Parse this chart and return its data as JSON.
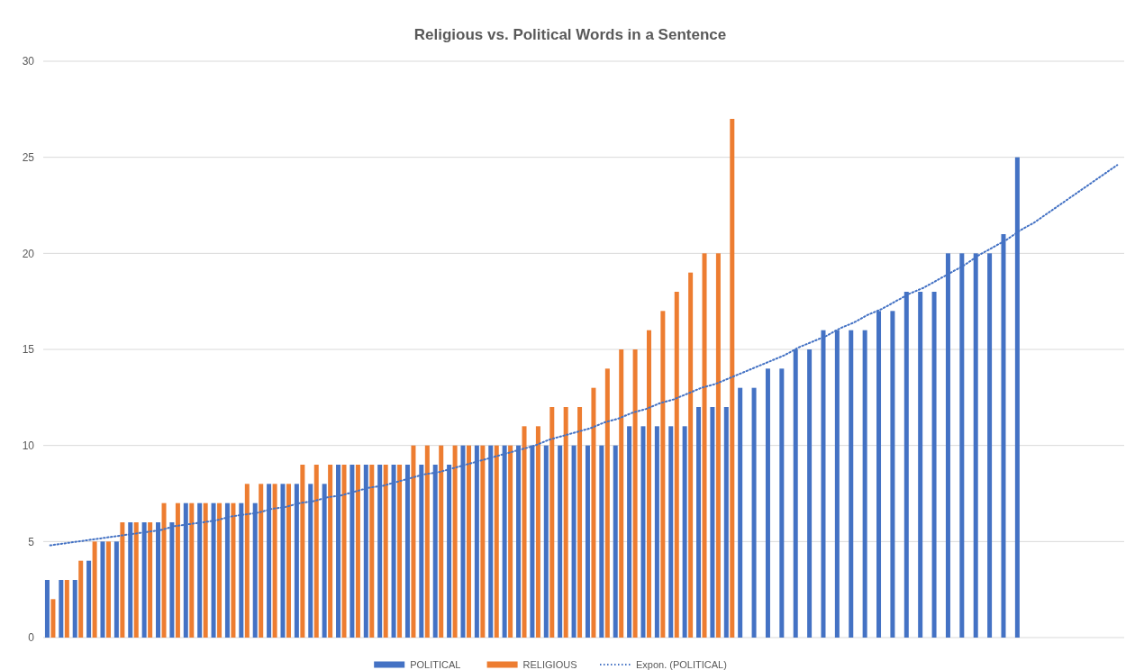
{
  "chart_data": {
    "type": "bar",
    "title": "Religious vs. Political Words in a Sentence",
    "categories": [
      null,
      null,
      null,
      null,
      null,
      null,
      null,
      null,
      null,
      null,
      null,
      null,
      null,
      null,
      null,
      null,
      null,
      null,
      null,
      null,
      null,
      null,
      null,
      null,
      null,
      null,
      null,
      null,
      null,
      null,
      null,
      null,
      null,
      null,
      null,
      null,
      null,
      null,
      null,
      null,
      null,
      null,
      null,
      null,
      null,
      null,
      null,
      null,
      null,
      null,
      null,
      null,
      null,
      null,
      null,
      null,
      null,
      null,
      null,
      null,
      null,
      null,
      null,
      null,
      null,
      null,
      null,
      null,
      null,
      null,
      null,
      null,
      null,
      null,
      null,
      null,
      null,
      null
    ],
    "series": [
      {
        "name": "POLITICAL",
        "color": "#4472c4",
        "values": [
          3,
          3,
          3,
          4,
          5,
          5,
          6,
          6,
          6,
          6,
          7,
          7,
          7,
          7,
          7,
          7,
          8,
          8,
          8,
          8,
          8,
          9,
          9,
          9,
          9,
          9,
          9,
          9,
          9,
          9,
          10,
          10,
          10,
          10,
          10,
          10,
          10,
          10,
          10,
          10,
          10,
          10,
          11,
          11,
          11,
          11,
          11,
          12,
          12,
          12,
          13,
          13,
          14,
          14,
          15,
          15,
          16,
          16,
          16,
          16,
          17,
          17,
          18,
          18,
          18,
          20,
          20,
          20,
          20,
          21,
          25,
          null,
          null,
          null,
          null,
          null,
          null,
          null
        ]
      },
      {
        "name": "RELIGIOUS",
        "color": "#ed7d31",
        "values": [
          2,
          3,
          4,
          5,
          5,
          6,
          6,
          6,
          7,
          7,
          7,
          7,
          7,
          7,
          8,
          8,
          8,
          8,
          9,
          9,
          9,
          9,
          9,
          9,
          9,
          9,
          10,
          10,
          10,
          10,
          10,
          10,
          10,
          10,
          11,
          11,
          12,
          12,
          12,
          13,
          14,
          15,
          15,
          16,
          17,
          18,
          19,
          20,
          20,
          27,
          null,
          null,
          null,
          null,
          null,
          null,
          null,
          null,
          null,
          null,
          null,
          null,
          null,
          null,
          null,
          null,
          null,
          null,
          null,
          null,
          null,
          null,
          null,
          null,
          null,
          null,
          null,
          null
        ]
      },
      {
        "name": "Expon. (POLITICAL)",
        "type": "line",
        "line_style": "dotted",
        "color": "#4472c4",
        "values": [
          4.8,
          4.9,
          5.0,
          5.1,
          5.2,
          5.3,
          5.4,
          5.5,
          5.6,
          5.8,
          5.9,
          6.0,
          6.1,
          6.3,
          6.4,
          6.5,
          6.7,
          6.8,
          7.0,
          7.1,
          7.3,
          7.4,
          7.6,
          7.8,
          7.9,
          8.1,
          8.3,
          8.5,
          8.6,
          8.8,
          9.0,
          9.2,
          9.4,
          9.6,
          9.8,
          10.0,
          10.3,
          10.5,
          10.7,
          10.9,
          11.2,
          11.4,
          11.7,
          11.9,
          12.2,
          12.4,
          12.7,
          13.0,
          13.2,
          13.5,
          13.8,
          14.1,
          14.4,
          14.7,
          15.1,
          15.4,
          15.7,
          16.1,
          16.4,
          16.8,
          17.1,
          17.5,
          17.9,
          18.2,
          18.6,
          19.0,
          19.4,
          19.9,
          20.3,
          20.7,
          21.2,
          21.6,
          22.1,
          22.6,
          23.1,
          23.6,
          24.1,
          24.6
        ]
      }
    ],
    "ylim": [
      0,
      30
    ],
    "yticks": [
      0,
      5,
      10,
      15,
      20,
      25,
      30
    ],
    "grid": "y",
    "legend": "bottom",
    "tick_labels": "y"
  }
}
